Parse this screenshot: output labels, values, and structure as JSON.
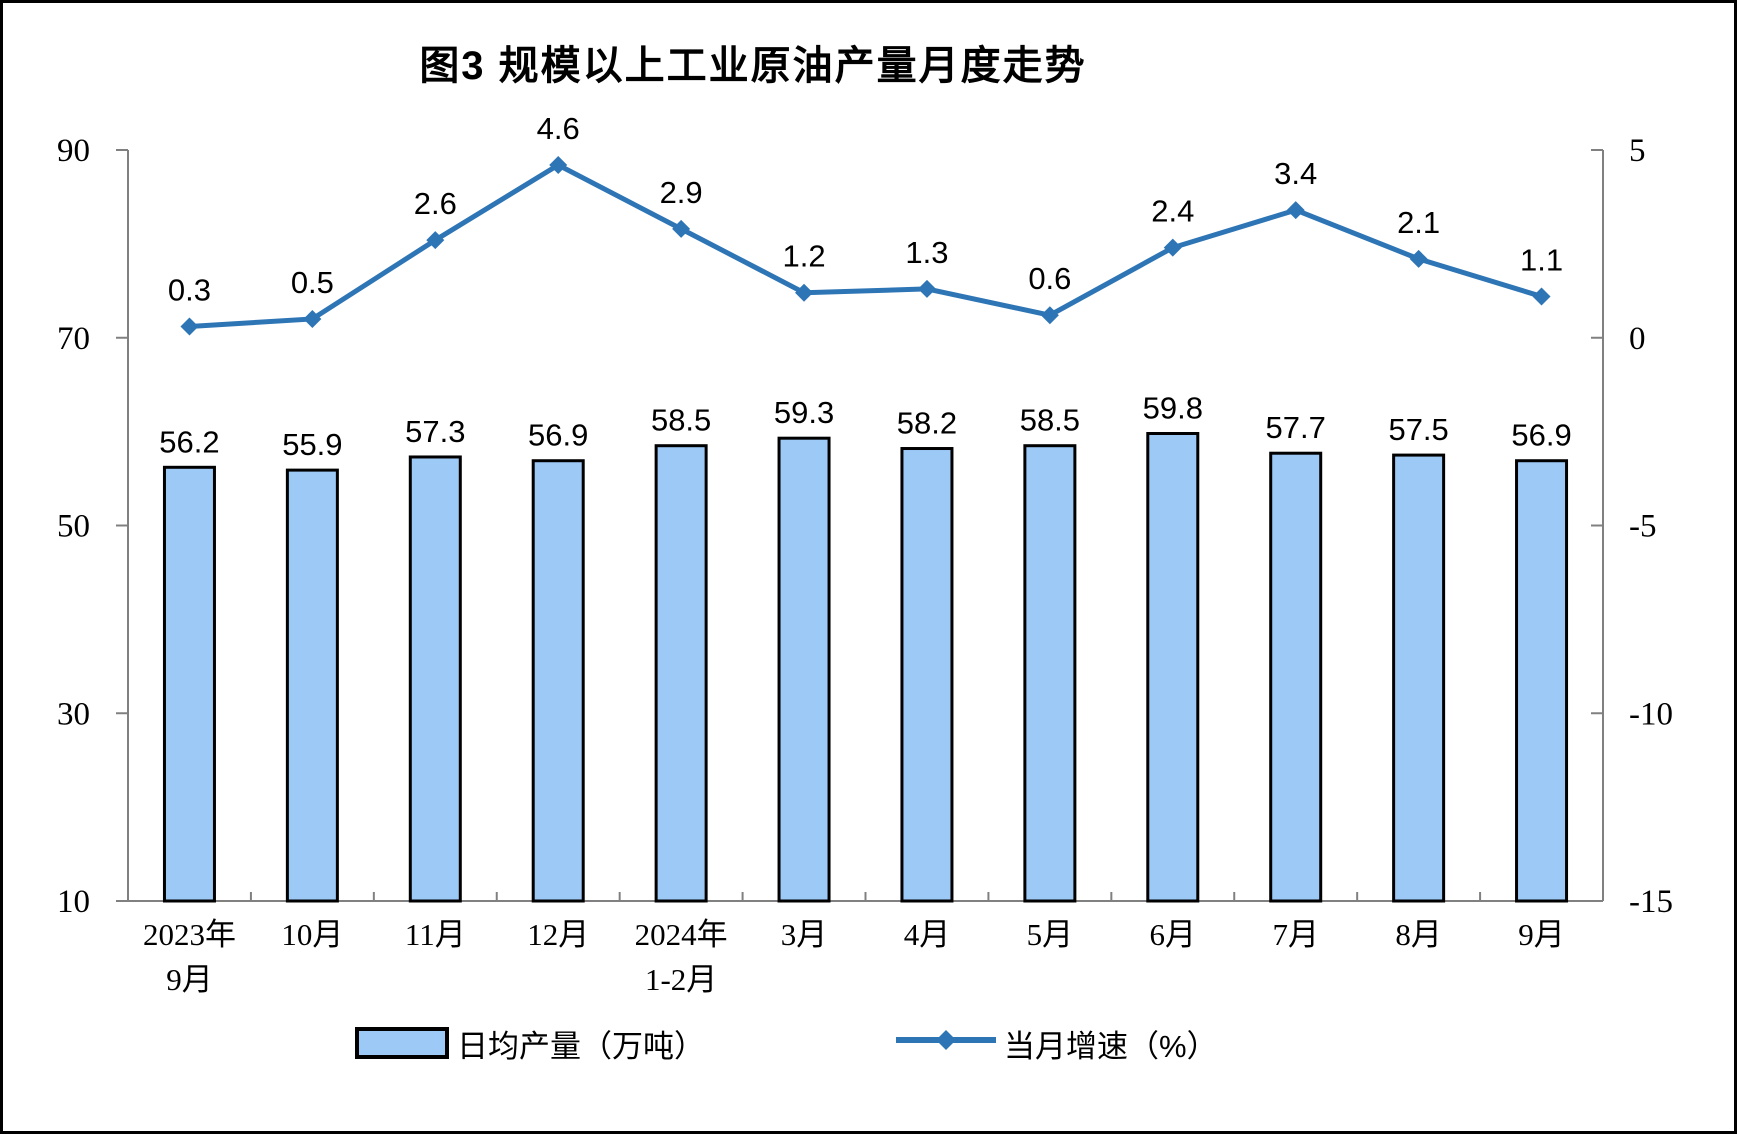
{
  "title": "图3 规模以上工业原油产量月度走势",
  "chart_data": {
    "type": "combo-bar-line",
    "title": "图3 规模以上工业原油产量月度走势",
    "categories": [
      [
        "2023年",
        "9月"
      ],
      [
        "10月"
      ],
      [
        "11月"
      ],
      [
        "12月"
      ],
      [
        "2024年",
        "1-2月"
      ],
      [
        "3月"
      ],
      [
        "4月"
      ],
      [
        "5月"
      ],
      [
        "6月"
      ],
      [
        "7月"
      ],
      [
        "8月"
      ],
      [
        "9月"
      ]
    ],
    "series": [
      {
        "name": "日均产量（万吨）",
        "type": "bar",
        "axis": "left",
        "values": [
          56.2,
          55.9,
          57.3,
          56.9,
          58.5,
          59.3,
          58.2,
          58.5,
          59.8,
          57.7,
          57.5,
          56.9
        ],
        "fill": "#9DC9F7",
        "stroke": "#000000"
      },
      {
        "name": "当月增速（%）",
        "type": "line",
        "axis": "right",
        "values": [
          0.3,
          0.5,
          2.6,
          4.6,
          2.9,
          1.2,
          1.3,
          0.6,
          2.4,
          3.4,
          2.1,
          1.1
        ],
        "color": "#2E75B6",
        "marker": "diamond"
      }
    ],
    "left_axis": {
      "min": 10,
      "max": 90,
      "ticks": [
        90,
        70,
        50,
        30,
        10
      ]
    },
    "right_axis": {
      "min": -15,
      "max": 5,
      "ticks": [
        5,
        0,
        -5,
        -10,
        -15
      ]
    },
    "grid": false,
    "legend_position": "bottom",
    "axis_color": "#808080"
  }
}
